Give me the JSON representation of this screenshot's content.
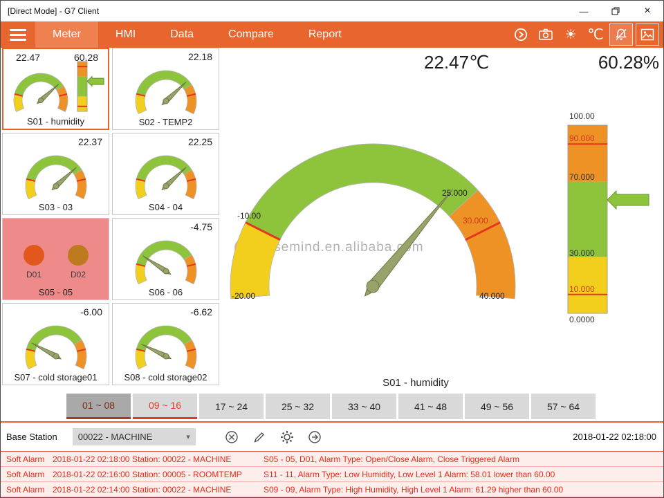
{
  "window": {
    "title": "[Direct Mode] - G7 Client",
    "minimize_icon": "—",
    "close_icon": "×"
  },
  "navbar": {
    "tabs": [
      {
        "label": "Meter",
        "active": true
      },
      {
        "label": "HMI",
        "active": false
      },
      {
        "label": "Data",
        "active": false
      },
      {
        "label": "Compare",
        "active": false
      },
      {
        "label": "Report",
        "active": false
      }
    ],
    "unit_button": "℃"
  },
  "meter_scale": {
    "min": -20,
    "max": 40,
    "segments": [
      {
        "from": -20,
        "to": -10,
        "color": "#f2cf1d"
      },
      {
        "from": -10,
        "to": 25,
        "color": "#8ec43c"
      },
      {
        "from": 25,
        "to": 40,
        "color": "#ef9226"
      }
    ],
    "ticks": [
      {
        "at": -10,
        "color": "#e6351d"
      },
      {
        "at": 30,
        "color": "#e6351d"
      }
    ]
  },
  "humidity_scale": {
    "min": 0,
    "max": 100,
    "segments": [
      {
        "from": 0,
        "to": 30,
        "color": "#f2cf1d"
      },
      {
        "from": 30,
        "to": 70,
        "color": "#8ec43c"
      },
      {
        "from": 70,
        "to": 100,
        "color": "#ef9226"
      }
    ],
    "ticks": [
      {
        "at": 10,
        "color": "#e6351d"
      },
      {
        "at": 90,
        "color": "#e6351d"
      }
    ]
  },
  "tiles": [
    {
      "label": "S01 - humidity",
      "display": "22.47",
      "display2": "60.28",
      "selected": true,
      "gauge": {
        "value": 22.47
      },
      "bar": {
        "value": 60.28
      }
    },
    {
      "label": "S02 - TEMP2",
      "display": "22.18",
      "gauge": {
        "value": 22.18
      }
    },
    {
      "label": "S03 - 03",
      "display": "22.37",
      "gauge": {
        "value": 22.37
      }
    },
    {
      "label": "S04 - 04",
      "display": "22.25",
      "gauge": {
        "value": 22.25
      }
    },
    {
      "label": "S05 - 05",
      "type": "contacts",
      "contacts": [
        {
          "label": "D01",
          "color": "#e2581c"
        },
        {
          "label": "D02",
          "color": "#bd7a1f"
        }
      ],
      "bg": "#ee8a8a"
    },
    {
      "label": "S06 - 06",
      "display": "-4.75",
      "gauge": {
        "value": -4.75
      }
    },
    {
      "label": "S07 - cold storage01",
      "display": "-6.00",
      "gauge": {
        "value": -6.0
      }
    },
    {
      "label": "S08 - cold storage02",
      "display": "-6.62",
      "gauge": {
        "value": -6.62
      }
    }
  ],
  "main": {
    "temp_reading": "22.47℃",
    "humidity_reading": "60.28%",
    "caption": "S01 - humidity",
    "watermark": "easemind.en.alibaba.com",
    "gauge_value": 22.47,
    "gauge_labels": {
      "min": "-20.00",
      "max": "40.000",
      "warn_low": "-10.00",
      "boundary": "25.000",
      "warn_high": "30.000"
    },
    "bar_value": 60.28,
    "bar_labels": {
      "p100": "100.00",
      "p90": "90.000",
      "p70": "70.000",
      "p30": "30.000",
      "p10": "10.000",
      "p0": "0.0000"
    }
  },
  "range_tabs": [
    {
      "label": "01 ~ 08",
      "state": "active"
    },
    {
      "label": "09 ~ 16",
      "state": "alert"
    },
    {
      "label": "17 ~ 24",
      "state": ""
    },
    {
      "label": "25 ~ 32",
      "state": ""
    },
    {
      "label": "33 ~ 40",
      "state": ""
    },
    {
      "label": "41 ~ 48",
      "state": ""
    },
    {
      "label": "49 ~ 56",
      "state": ""
    },
    {
      "label": "57 ~ 64",
      "state": ""
    }
  ],
  "bottom_bar": {
    "label": "Base Station",
    "station": "00022 - MACHINE",
    "timestamp": "2018-01-22 02:18:00"
  },
  "alarms": [
    {
      "type": "Soft Alarm",
      "time": "2018-01-22 02:18:00",
      "station": "Station: 00022 - MACHINE",
      "message": "S05 - 05, D01, Alarm Type: Open/Close Alarm, Close Triggered Alarm"
    },
    {
      "type": "Soft Alarm",
      "time": "2018-01-22 02:16:00",
      "station": "Station: 00005 - ROOMTEMP",
      "message": "S11 - 11, Alarm Type: Low Humidity, Low Level 1 Alarm: 58.01 lower than 60.00"
    },
    {
      "type": "Soft Alarm",
      "time": "2018-01-22 02:14:00",
      "station": "Station: 00022 - MACHINE",
      "message": "S09 - 09, Alarm Type: High Humidity, High Level 1 Alarm: 61.29 higher than 60.00"
    }
  ],
  "colors": {
    "accent": "#e8642c",
    "navbar": "#e8652e",
    "active_tab": "#ef8050",
    "gauge_green": "#8ec43c",
    "gauge_yellow": "#f2cf1d",
    "gauge_orange": "#ef9226",
    "tick_red": "#e6351d",
    "needle": "#98a36b",
    "alarm_text": "#e92a17",
    "tile_alarm_bg": "#ee8a8a",
    "contact_d01": "#e2581c",
    "contact_d02": "#bd7a1f"
  }
}
